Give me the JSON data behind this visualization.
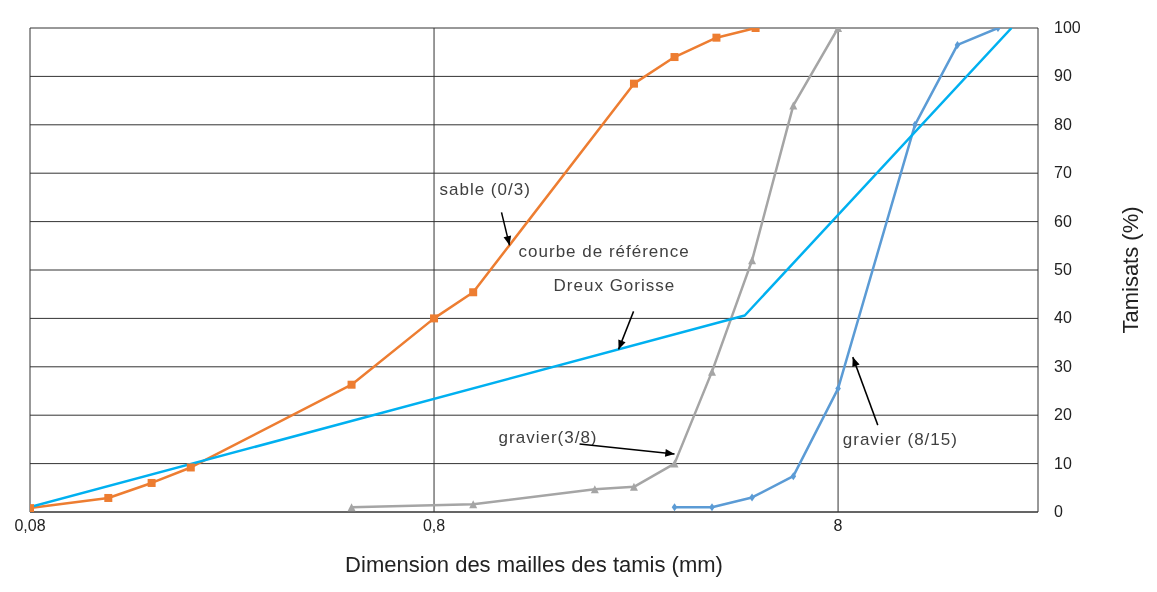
{
  "chart_data": {
    "type": "line",
    "xlabel": "Dimension des mailles des tamis (mm)",
    "ylabel": "Tamisats (%)",
    "log": "x",
    "xlim": [
      0.08,
      25
    ],
    "xticks": [
      {
        "value": 0.08,
        "label": "0,08"
      },
      {
        "value": 0.8,
        "label": "0,8"
      },
      8
    ],
    "ylim": [
      0,
      100
    ],
    "yticks": [
      0,
      10,
      20,
      30,
      40,
      50,
      60,
      70,
      80,
      90,
      100
    ],
    "grid": true,
    "series": [
      {
        "color": "#ed7d31",
        "marker": "square",
        "x": [
          0.08,
          0.125,
          0.16,
          0.2,
          0.5,
          0.8,
          1.0,
          2.5,
          3.15,
          4.0,
          5.0
        ],
        "values": [
          0.8,
          2.9,
          6,
          9.2,
          26.3,
          40,
          45.4,
          88.5,
          94,
          98,
          100
        ]
      },
      {
        "color": "#a5a5a5",
        "marker": "triangle",
        "x": [
          0.5,
          1.0,
          2.0,
          2.5,
          3.15,
          3.9,
          4.9,
          6.2,
          8
        ],
        "values": [
          1,
          1.6,
          4.7,
          5.2,
          10,
          29,
          52,
          84,
          100
        ]
      },
      {
        "color": "#5b9bd5",
        "marker": "diamond",
        "x": [
          3.15,
          3.9,
          4.9,
          6.2,
          8,
          12.4,
          15.8,
          19.9
        ],
        "values": [
          1,
          1,
          3,
          7.4,
          25.5,
          80,
          96.5,
          100
        ]
      },
      {
        "color": "#00b0f0",
        "marker": "none",
        "x": [
          0.08,
          4.7,
          21.5
        ],
        "values": [
          1,
          40.6,
          100
        ]
      }
    ],
    "annotations": [
      {
        "text": "sable (0/3)",
        "x": 1.23,
        "y": 55.1
      },
      {
        "text": "courbe de référence\nDreux Gorisse",
        "x": 2.29,
        "y": 33.6
      },
      {
        "text": "gravier(3/8)",
        "x": 3.15,
        "y": 12
      },
      {
        "text": "gravier (8/15)",
        "x": 8.7,
        "y": 32
      }
    ]
  }
}
